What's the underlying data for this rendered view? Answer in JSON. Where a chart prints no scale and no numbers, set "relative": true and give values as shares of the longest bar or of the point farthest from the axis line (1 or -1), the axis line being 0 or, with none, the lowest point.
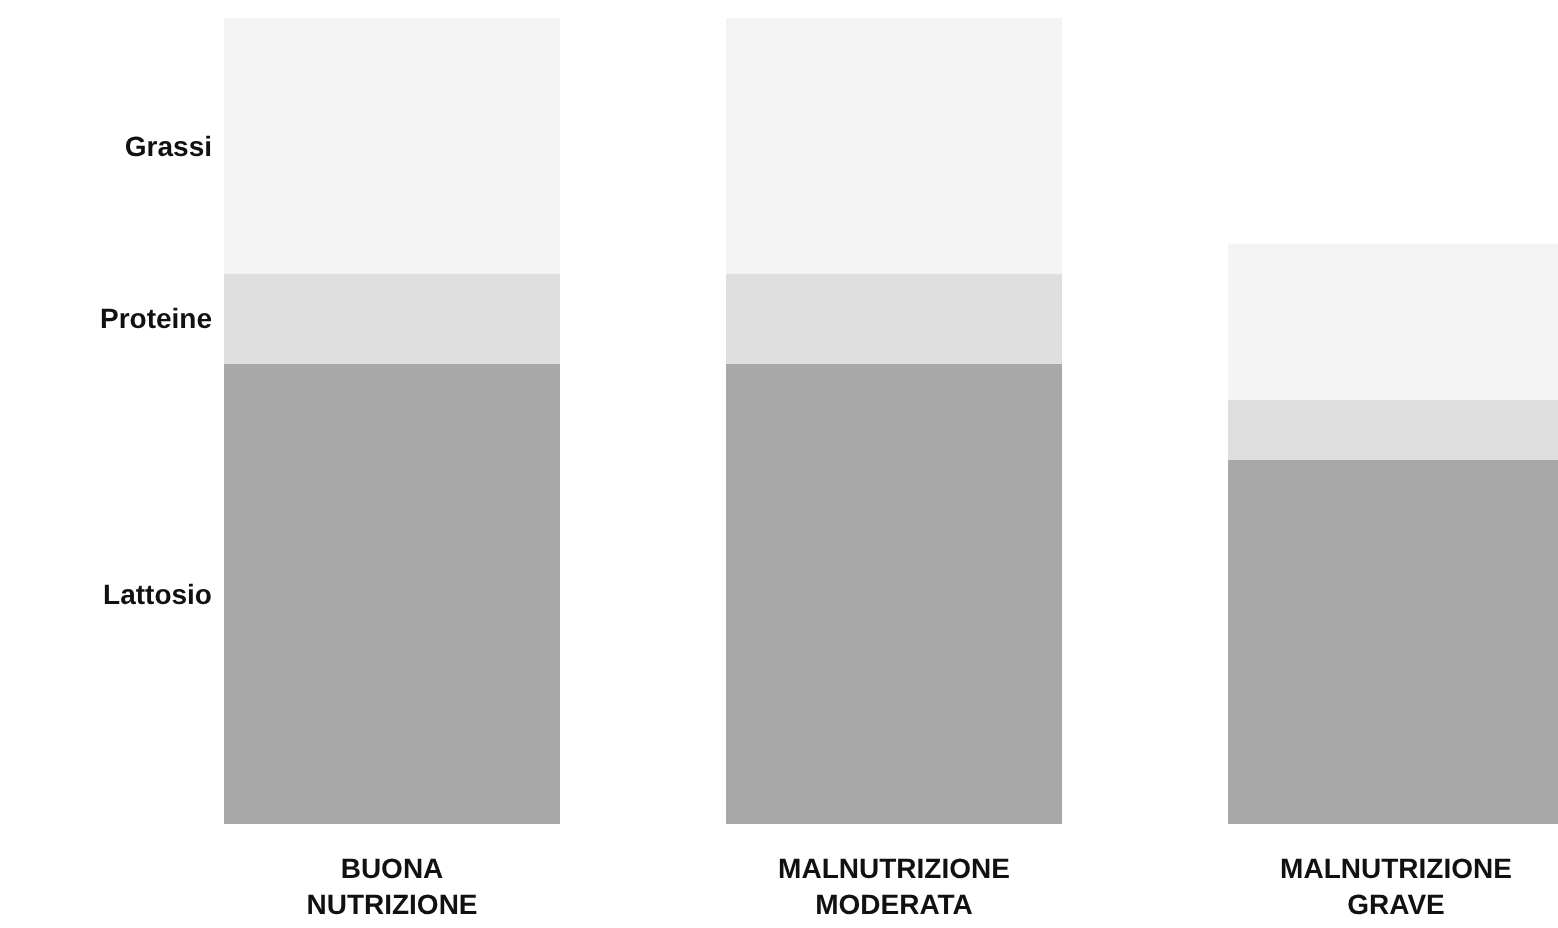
{
  "chart_data": {
    "type": "bar",
    "stacked": true,
    "relative": true,
    "categories": [
      "BUONA NUTRIZIONE",
      "MALNUTRIZIONE MODERATA",
      "MALNUTRIZIONE GRAVE"
    ],
    "series": [
      {
        "name": "Lattosio",
        "color": "#a8a8a8",
        "values": [
          0.571,
          0.571,
          0.452
        ]
      },
      {
        "name": "Proteine",
        "color": "#dedede",
        "values": [
          0.112,
          0.112,
          0.074
        ]
      },
      {
        "name": "Grassi",
        "color": "#f4f4f4",
        "values": [
          0.317,
          0.317,
          0.194
        ]
      }
    ]
  }
}
